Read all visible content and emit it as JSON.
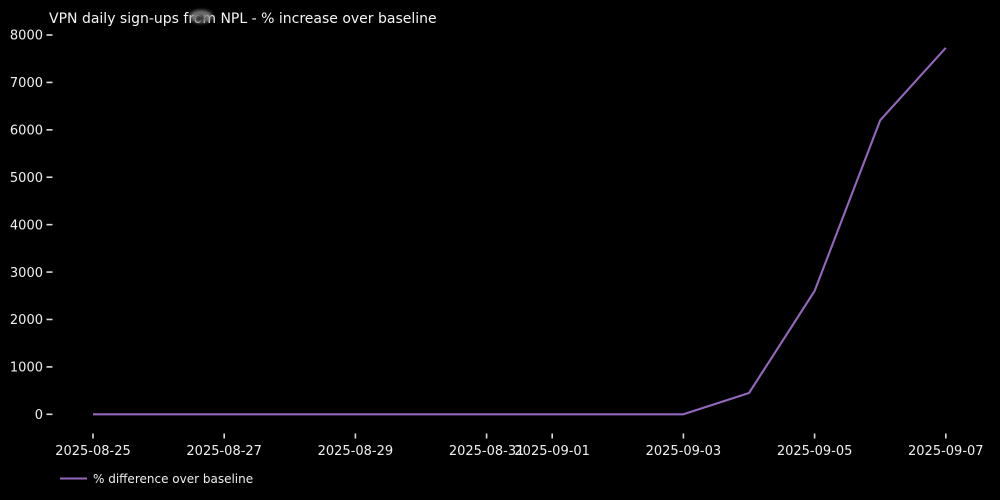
{
  "chart_data": {
    "type": "line",
    "title": "VPN daily sign-ups from NPL - % increase over baseline",
    "x": [
      "2025-08-25",
      "2025-08-26",
      "2025-08-27",
      "2025-08-28",
      "2025-08-29",
      "2025-08-30",
      "2025-08-31",
      "2025-09-01",
      "2025-09-02",
      "2025-09-03",
      "2025-09-04",
      "2025-09-05",
      "2025-09-06",
      "2025-09-07"
    ],
    "series": [
      {
        "name": "% difference over baseline",
        "values": [
          0,
          0,
          0,
          0,
          0,
          0,
          0,
          0,
          0,
          0,
          450,
          2600,
          6200,
          7730
        ]
      }
    ],
    "xlabel": "",
    "ylabel": "",
    "ylim": [
      0,
      8000
    ],
    "yticks": [
      0,
      1000,
      2000,
      3000,
      4000,
      5000,
      6000,
      7000,
      8000
    ],
    "x_tick_indices": [
      0,
      2,
      4,
      6,
      7,
      9,
      11,
      13
    ],
    "grid": false,
    "legend_position": "lower left, below axis",
    "line_color": "#9467bd",
    "background_color": "#000000",
    "text_color": "#efefef",
    "tick_color": "#dcdcdc"
  }
}
